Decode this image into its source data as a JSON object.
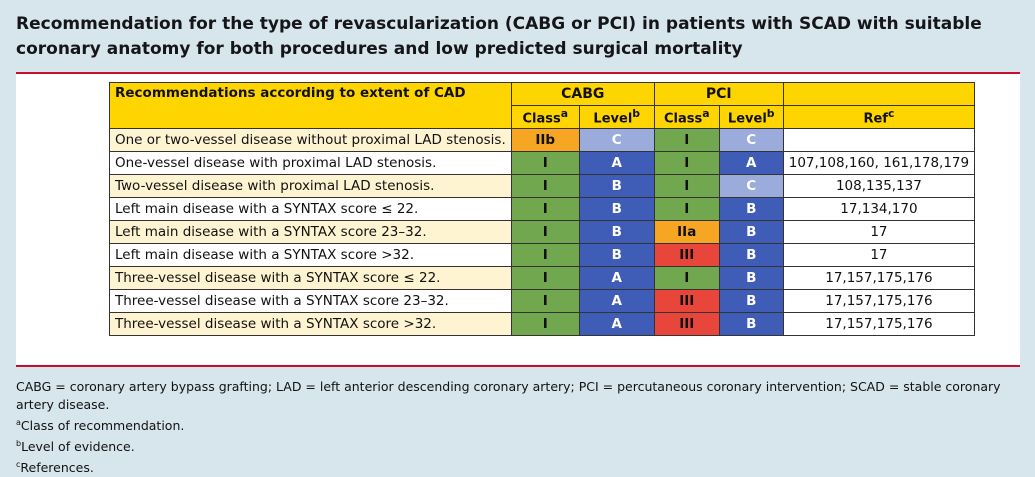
{
  "title": "Recommendation for the type of revascularization (CABG or PCI) in patients with SCAD with suitable coronary anatomy for both procedures and low predicted surgical mortality",
  "table": {
    "header_main": "Recommendations according to extent of CAD",
    "group_cabg": "CABG",
    "group_pci": "PCI",
    "sub_class": "Class",
    "sub_level": "Level",
    "sub_ref": "Ref",
    "sup_a": "a",
    "sup_b": "b",
    "sup_c": "c",
    "rows": [
      {
        "label": "One or two-vessel disease without  proximal  LAD stenosis.",
        "cabg_class": "IIb",
        "cabg_level": "C",
        "pci_class": "I",
        "pci_level": "C",
        "ref": ""
      },
      {
        "label": "One-vessel disease with proximal LAD stenosis.",
        "cabg_class": "I",
        "cabg_level": "A",
        "pci_class": "I",
        "pci_level": "A",
        "ref": "107,108,160, 161,178,179"
      },
      {
        "label": "Two-vessel disease with proximal LAD stenosis.",
        "cabg_class": "I",
        "cabg_level": "B",
        "pci_class": "I",
        "pci_level": "C",
        "ref": "108,135,137"
      },
      {
        "label": "Left main disease with a SYNTAX score ≤ 22.",
        "cabg_class": "I",
        "cabg_level": "B",
        "pci_class": "I",
        "pci_level": "B",
        "ref": "17,134,170"
      },
      {
        "label": "Left main disease with a SYNTAX score 23–32.",
        "cabg_class": "I",
        "cabg_level": "B",
        "pci_class": "IIa",
        "pci_level": "B",
        "ref": "17"
      },
      {
        "label": "Left main disease with a SYNTAX score >32.",
        "cabg_class": "I",
        "cabg_level": "B",
        "pci_class": "III",
        "pci_level": "B",
        "ref": "17"
      },
      {
        "label": "Three-vessel disease with a SYNTAX score ≤ 22.",
        "cabg_class": "I",
        "cabg_level": "A",
        "pci_class": "I",
        "pci_level": "B",
        "ref": "17,157,175,176"
      },
      {
        "label": "Three-vessel disease with a SYNTAX score 23–32.",
        "cabg_class": "I",
        "cabg_level": "A",
        "pci_class": "III",
        "pci_level": "B",
        "ref": "17,157,175,176"
      },
      {
        "label": "Three-vessel disease with a SYNTAX score >32.",
        "cabg_class": "I",
        "cabg_level": "A",
        "pci_class": "III",
        "pci_level": "B",
        "ref": "17,157,175,176"
      }
    ]
  },
  "footnotes": {
    "abbrev": "CABG = coronary artery bypass grafting; LAD = left anterior descending coronary artery; PCI = percutaneous coronary intervention; SCAD = stable coronary artery disease.",
    "a_mark": "a",
    "a_text": "Class of recommendation.",
    "b_mark": "b",
    "b_text": "Level of evidence.",
    "c_mark": "c",
    "c_text": "References."
  },
  "colors": {
    "background": "#d7e6ec",
    "header_yellow": "#ffd500",
    "row_tint": "#fff4d1",
    "rule_red": "#c8102e",
    "class_I": "#71a84f",
    "class_IIa": "#f6a623",
    "class_IIb": "#f6a623",
    "class_III": "#e8463a",
    "level_A": "#3f5cb7",
    "level_B": "#3f5cb7",
    "level_C": "#9aabdc"
  }
}
